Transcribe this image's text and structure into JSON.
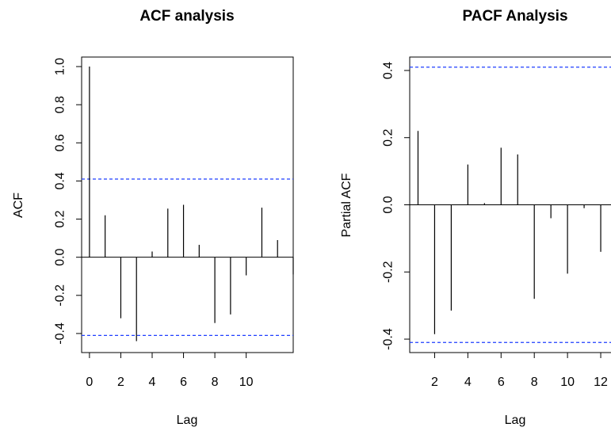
{
  "chart_data": [
    {
      "type": "bar",
      "title": "ACF analysis",
      "xlabel": "Lag",
      "ylabel": "ACF",
      "x_ticks": [
        0,
        2,
        4,
        6,
        8,
        10
      ],
      "y_ticks": [
        "-0.4",
        "-0.2",
        "0.0",
        "0.2",
        "0.4",
        "0.6",
        "0.8",
        "1.0"
      ],
      "y_tick_values": [
        -0.4,
        -0.2,
        0.0,
        0.2,
        0.4,
        0.6,
        0.8,
        1.0
      ],
      "xlim": [
        -0.5,
        13.0
      ],
      "ylim": [
        -0.5,
        1.05
      ],
      "lags": [
        0,
        1,
        2,
        3,
        4,
        5,
        6,
        7,
        8,
        9,
        10,
        11,
        12,
        13
      ],
      "values": [
        1.0,
        0.22,
        -0.32,
        -0.44,
        0.03,
        0.255,
        0.275,
        0.065,
        -0.345,
        -0.3,
        -0.095,
        0.26,
        0.09,
        -0.09
      ],
      "ci": 0.41,
      "ci_color": "#1f3fff"
    },
    {
      "type": "bar",
      "title": "PACF Analysis",
      "xlabel": "Lag",
      "ylabel": "Partial ACF",
      "x_ticks": [
        2,
        4,
        6,
        8,
        10,
        12
      ],
      "y_ticks": [
        "-0.4",
        "-0.2",
        "0.0",
        "0.2",
        "0.4"
      ],
      "y_tick_values": [
        -0.4,
        -0.2,
        0.0,
        0.2,
        0.4
      ],
      "xlim": [
        0.5,
        13.0
      ],
      "ylim": [
        -0.44,
        0.44
      ],
      "lags": [
        1,
        2,
        3,
        4,
        5,
        6,
        7,
        8,
        9,
        10,
        11,
        12
      ],
      "values": [
        0.22,
        -0.385,
        -0.315,
        0.12,
        0.005,
        0.17,
        0.15,
        -0.28,
        -0.04,
        -0.205,
        -0.01,
        -0.14
      ],
      "ci": 0.41,
      "ci_color": "#1f3fff"
    }
  ]
}
